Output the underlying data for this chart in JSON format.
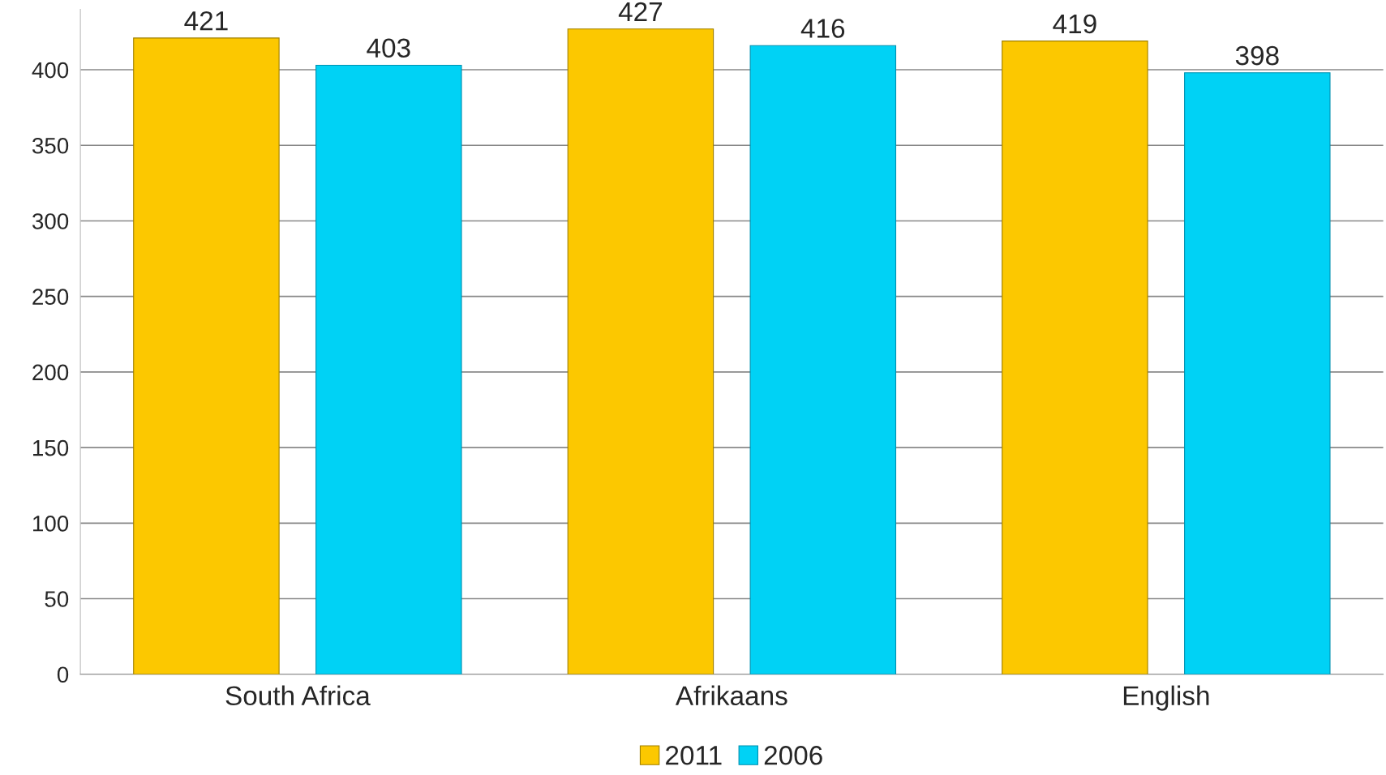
{
  "chart_data": {
    "type": "bar",
    "categories": [
      "South Africa",
      "Afrikaans",
      "English"
    ],
    "series": [
      {
        "name": "2011",
        "color": "#fcc800",
        "values": [
          421,
          427,
          419
        ]
      },
      {
        "name": "2006",
        "color": "#00d2f5",
        "values": [
          403,
          416,
          398
        ]
      }
    ],
    "ylim": [
      0,
      440
    ],
    "yticks": [
      0,
      50,
      100,
      150,
      200,
      250,
      300,
      350,
      400
    ],
    "grid": "y",
    "legend": "bottom",
    "data_labels": true
  }
}
